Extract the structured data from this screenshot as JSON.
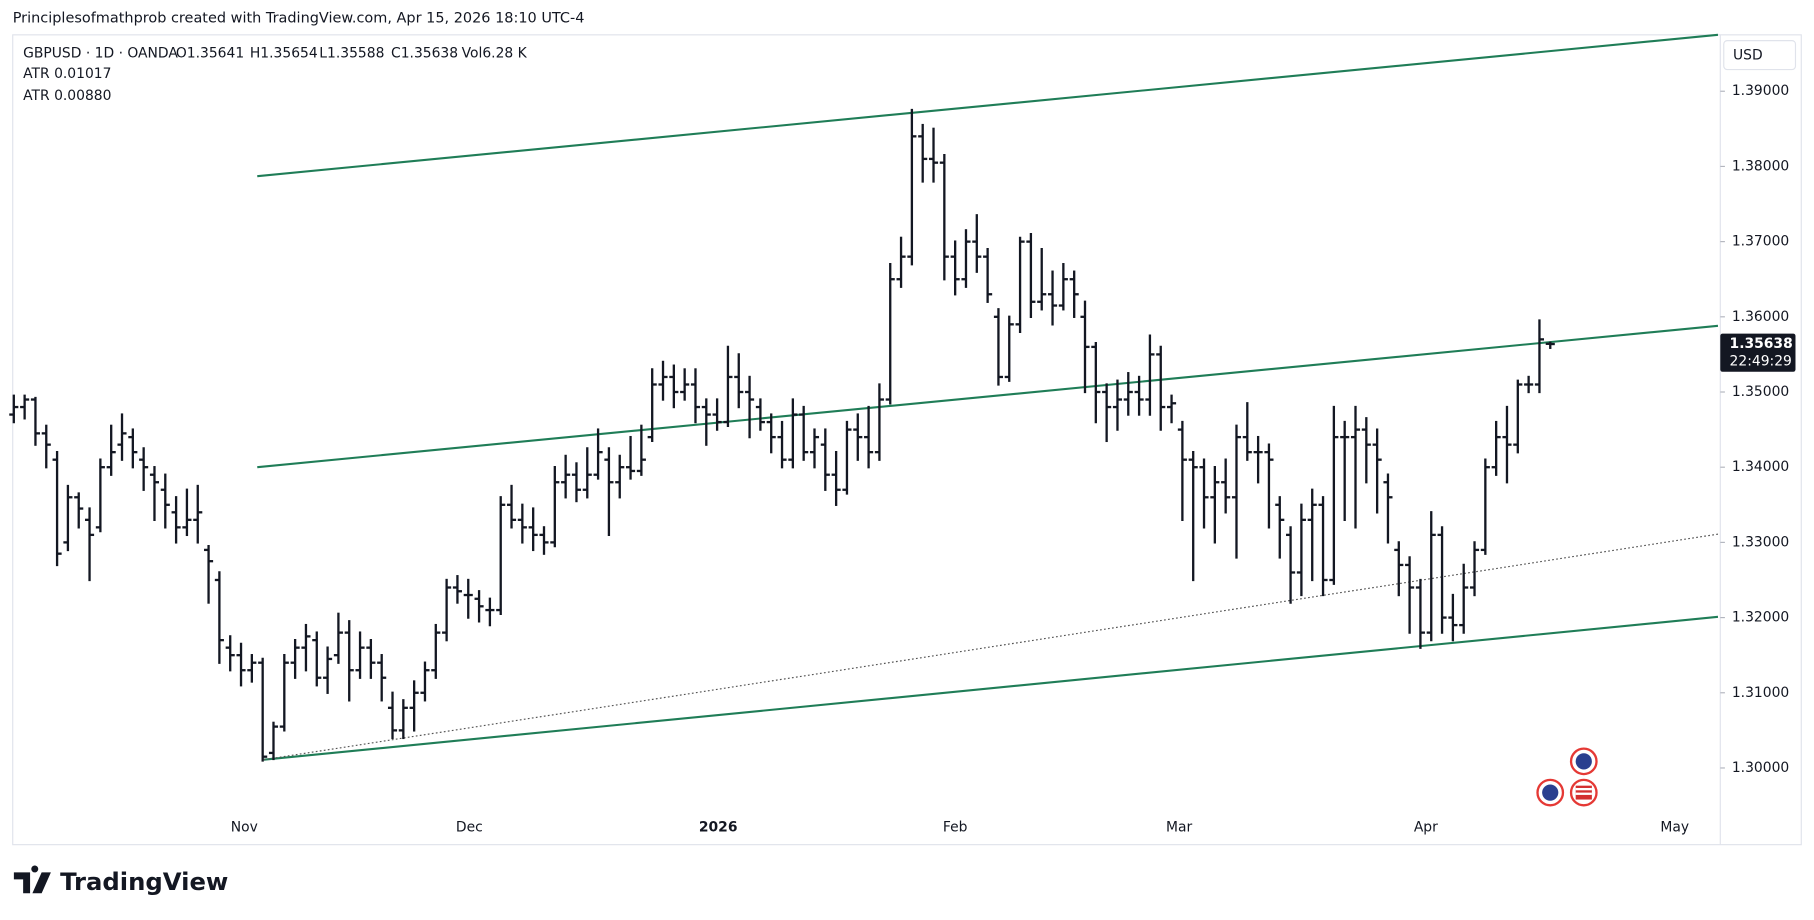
{
  "chart_data": {
    "type": "ohlc",
    "attribution": "Principlesofmathprob created with TradingView.com, Apr 15, 2026 18:10 UTC-4",
    "symbol": "GBPUSD · 1D · OANDA",
    "ohlc_legend": [
      "O1.35641",
      "H1.35654",
      "L1.35588",
      "C1.35638",
      "Vol6.28 K"
    ],
    "indicators": [
      "ATR 0.01017",
      "ATR 0.00880"
    ],
    "currency": "USD",
    "price_tag": "1.35638",
    "countdown": "22:49:29",
    "brand": "TradingView",
    "color": "#131722",
    "xlim": [
      -0.1,
      157.5
    ],
    "ylim": [
      1.2898,
      1.3975
    ],
    "xticks": [
      {
        "value": 21.3,
        "label": "Nov"
      },
      {
        "value": 42.1,
        "label": "Dec"
      },
      {
        "value": 65.1,
        "label": "2026"
      },
      {
        "value": 87,
        "label": "Feb"
      },
      {
        "value": 107.7,
        "label": "Mar"
      },
      {
        "value": 130.5,
        "label": "Apr"
      },
      {
        "value": 153.5,
        "label": "May"
      }
    ],
    "yticks": [
      {
        "value": 1.3,
        "label": "1.30000"
      },
      {
        "value": 1.31,
        "label": "1.31000"
      },
      {
        "value": 1.32,
        "label": "1.32000"
      },
      {
        "value": 1.33,
        "label": "1.33000"
      },
      {
        "value": 1.34,
        "label": "1.34000"
      },
      {
        "value": 1.35,
        "label": "1.35000"
      },
      {
        "value": 1.36,
        "label": "1.36000"
      },
      {
        "value": 1.37,
        "label": "1.37000"
      },
      {
        "value": 1.38,
        "label": "1.38000"
      },
      {
        "value": 1.39,
        "label": "1.39000"
      }
    ],
    "grid": false,
    "trendlines": [
      {
        "x": [
          22.5,
          157.5
        ],
        "y": [
          1.3787,
          1.3975
        ],
        "color": "#1f7d57",
        "style": "solid"
      },
      {
        "x": [
          22.5,
          157.5
        ],
        "y": [
          1.34,
          1.3588
        ],
        "color": "#1f7d57",
        "style": "solid"
      },
      {
        "x": [
          23.1,
          157.5
        ],
        "y": [
          1.3011,
          1.3201
        ],
        "color": "#1f7d57",
        "style": "solid"
      },
      {
        "x": [
          23.1,
          157.5
        ],
        "y": [
          1.3011,
          1.3311
        ],
        "color": "#555555",
        "style": "dotted"
      }
    ],
    "ohlc": [
      [
        1.347,
        1.3495,
        1.346,
        1.348
      ],
      [
        1.348,
        1.3495,
        1.3465,
        1.349
      ],
      [
        1.349,
        1.3492,
        1.343,
        1.3445
      ],
      [
        1.3445,
        1.3455,
        1.34,
        1.343
      ],
      [
        1.341,
        1.342,
        1.327,
        1.3285
      ],
      [
        1.33,
        1.3375,
        1.329,
        1.336
      ],
      [
        1.336,
        1.3365,
        1.332,
        1.3345
      ],
      [
        1.333,
        1.3345,
        1.325,
        1.331
      ],
      [
        1.332,
        1.341,
        1.3315,
        1.34
      ],
      [
        1.34,
        1.3455,
        1.339,
        1.342
      ],
      [
        1.343,
        1.347,
        1.341,
        1.3445
      ],
      [
        1.344,
        1.345,
        1.34,
        1.342
      ],
      [
        1.341,
        1.3425,
        1.337,
        1.34
      ],
      [
        1.339,
        1.34,
        1.333,
        1.338
      ],
      [
        1.337,
        1.339,
        1.332,
        1.335
      ],
      [
        1.334,
        1.336,
        1.33,
        1.332
      ],
      [
        1.332,
        1.337,
        1.331,
        1.333
      ],
      [
        1.333,
        1.3375,
        1.33,
        1.334
      ],
      [
        1.329,
        1.3295,
        1.322,
        1.3275
      ],
      [
        1.325,
        1.326,
        1.314,
        1.317
      ],
      [
        1.316,
        1.3175,
        1.313,
        1.315
      ],
      [
        1.315,
        1.3165,
        1.311,
        1.313
      ],
      [
        1.313,
        1.315,
        1.3115,
        1.314
      ],
      [
        1.314,
        1.3145,
        1.301,
        1.3015
      ],
      [
        1.302,
        1.306,
        1.3012,
        1.3055
      ],
      [
        1.3055,
        1.315,
        1.305,
        1.314
      ],
      [
        1.314,
        1.317,
        1.312,
        1.316
      ],
      [
        1.316,
        1.319,
        1.313,
        1.3175
      ],
      [
        1.317,
        1.318,
        1.311,
        1.312
      ],
      [
        1.312,
        1.316,
        1.31,
        1.3145
      ],
      [
        1.315,
        1.3205,
        1.314,
        1.318
      ],
      [
        1.318,
        1.3195,
        1.309,
        1.313
      ],
      [
        1.313,
        1.318,
        1.312,
        1.316
      ],
      [
        1.316,
        1.317,
        1.312,
        1.314
      ],
      [
        1.314,
        1.315,
        1.309,
        1.312
      ],
      [
        1.308,
        1.31,
        1.304,
        1.305
      ],
      [
        1.305,
        1.309,
        1.304,
        1.308
      ],
      [
        1.308,
        1.3115,
        1.305,
        1.31
      ],
      [
        1.31,
        1.314,
        1.309,
        1.313
      ],
      [
        1.313,
        1.319,
        1.312,
        1.318
      ],
      [
        1.318,
        1.325,
        1.317,
        1.324
      ],
      [
        1.324,
        1.3255,
        1.322,
        1.3235
      ],
      [
        1.323,
        1.325,
        1.32,
        1.323
      ],
      [
        1.3225,
        1.3235,
        1.3195,
        1.3215
      ],
      [
        1.321,
        1.3225,
        1.319,
        1.321
      ],
      [
        1.321,
        1.336,
        1.3205,
        1.335
      ],
      [
        1.335,
        1.3375,
        1.332,
        1.333
      ],
      [
        1.333,
        1.335,
        1.33,
        1.332
      ],
      [
        1.332,
        1.3345,
        1.329,
        1.331
      ],
      [
        1.331,
        1.332,
        1.3285,
        1.33
      ],
      [
        1.33,
        1.34,
        1.3295,
        1.338
      ],
      [
        1.338,
        1.3415,
        1.336,
        1.339
      ],
      [
        1.339,
        1.3405,
        1.3355,
        1.337
      ],
      [
        1.337,
        1.3425,
        1.336,
        1.339
      ],
      [
        1.339,
        1.345,
        1.3385,
        1.342
      ],
      [
        1.341,
        1.3425,
        1.331,
        1.338
      ],
      [
        1.338,
        1.3415,
        1.336,
        1.34
      ],
      [
        1.34,
        1.344,
        1.3385,
        1.3395
      ],
      [
        1.3395,
        1.3455,
        1.339,
        1.341
      ],
      [
        1.344,
        1.353,
        1.3435,
        1.351
      ],
      [
        1.351,
        1.354,
        1.349,
        1.352
      ],
      [
        1.352,
        1.3535,
        1.348,
        1.35
      ],
      [
        1.35,
        1.353,
        1.349,
        1.351
      ],
      [
        1.351,
        1.353,
        1.346,
        1.348
      ],
      [
        1.348,
        1.349,
        1.343,
        1.347
      ],
      [
        1.347,
        1.349,
        1.345,
        1.346
      ],
      [
        1.346,
        1.356,
        1.3455,
        1.352
      ],
      [
        1.352,
        1.355,
        1.348,
        1.35
      ],
      [
        1.35,
        1.352,
        1.344,
        1.349
      ],
      [
        1.348,
        1.349,
        1.345,
        1.346
      ],
      [
        1.346,
        1.347,
        1.342,
        1.344
      ],
      [
        1.344,
        1.346,
        1.34,
        1.341
      ],
      [
        1.341,
        1.349,
        1.34,
        1.347
      ],
      [
        1.347,
        1.348,
        1.341,
        1.342
      ],
      [
        1.342,
        1.345,
        1.34,
        1.344
      ],
      [
        1.343,
        1.345,
        1.337,
        1.339
      ],
      [
        1.339,
        1.342,
        1.335,
        1.337
      ],
      [
        1.337,
        1.346,
        1.3365,
        1.345
      ],
      [
        1.345,
        1.347,
        1.341,
        1.344
      ],
      [
        1.344,
        1.348,
        1.34,
        1.342
      ],
      [
        1.342,
        1.351,
        1.341,
        1.349
      ],
      [
        1.349,
        1.367,
        1.3485,
        1.365
      ],
      [
        1.365,
        1.3705,
        1.364,
        1.368
      ],
      [
        1.368,
        1.3875,
        1.367,
        1.384
      ],
      [
        1.384,
        1.3855,
        1.378,
        1.381
      ],
      [
        1.381,
        1.385,
        1.378,
        1.3805
      ],
      [
        1.3805,
        1.3815,
        1.365,
        1.368
      ],
      [
        1.368,
        1.37,
        1.363,
        1.365
      ],
      [
        1.365,
        1.3715,
        1.364,
        1.37
      ],
      [
        1.37,
        1.3735,
        1.366,
        1.368
      ],
      [
        1.368,
        1.369,
        1.362,
        1.363
      ],
      [
        1.36,
        1.361,
        1.351,
        1.352
      ],
      [
        1.352,
        1.36,
        1.3515,
        1.359
      ],
      [
        1.359,
        1.3705,
        1.358,
        1.37
      ],
      [
        1.37,
        1.371,
        1.36,
        1.362
      ],
      [
        1.362,
        1.369,
        1.361,
        1.363
      ],
      [
        1.363,
        1.366,
        1.359,
        1.3615
      ],
      [
        1.3615,
        1.367,
        1.361,
        1.365
      ],
      [
        1.365,
        1.366,
        1.36,
        1.363
      ],
      [
        1.36,
        1.362,
        1.35,
        1.356
      ],
      [
        1.356,
        1.3565,
        1.346,
        1.35
      ],
      [
        1.35,
        1.351,
        1.3435,
        1.348
      ],
      [
        1.348,
        1.3515,
        1.345,
        1.349
      ],
      [
        1.349,
        1.3525,
        1.347,
        1.35
      ],
      [
        1.35,
        1.352,
        1.347,
        1.349
      ],
      [
        1.349,
        1.3575,
        1.347,
        1.355
      ],
      [
        1.355,
        1.356,
        1.345,
        1.348
      ],
      [
        1.348,
        1.3495,
        1.346,
        1.3485
      ],
      [
        1.345,
        1.346,
        1.333,
        1.341
      ],
      [
        1.341,
        1.342,
        1.325,
        1.34
      ],
      [
        1.34,
        1.341,
        1.332,
        1.336
      ],
      [
        1.336,
        1.34,
        1.33,
        1.338
      ],
      [
        1.338,
        1.341,
        1.334,
        1.336
      ],
      [
        1.336,
        1.3455,
        1.328,
        1.344
      ],
      [
        1.344,
        1.3485,
        1.341,
        1.342
      ],
      [
        1.342,
        1.344,
        1.338,
        1.342
      ],
      [
        1.342,
        1.343,
        1.332,
        1.341
      ],
      [
        1.335,
        1.336,
        1.328,
        1.333
      ],
      [
        1.331,
        1.332,
        1.322,
        1.326
      ],
      [
        1.326,
        1.335,
        1.323,
        1.333
      ],
      [
        1.333,
        1.337,
        1.325,
        1.335
      ],
      [
        1.335,
        1.336,
        1.323,
        1.325
      ],
      [
        1.325,
        1.348,
        1.3245,
        1.344
      ],
      [
        1.344,
        1.346,
        1.333,
        1.344
      ],
      [
        1.344,
        1.348,
        1.332,
        1.345
      ],
      [
        1.345,
        1.3465,
        1.338,
        1.343
      ],
      [
        1.343,
        1.345,
        1.334,
        1.341
      ],
      [
        1.338,
        1.339,
        1.33,
        1.336
      ],
      [
        1.329,
        1.33,
        1.323,
        1.327
      ],
      [
        1.327,
        1.328,
        1.318,
        1.324
      ],
      [
        1.324,
        1.325,
        1.316,
        1.318
      ],
      [
        1.318,
        1.334,
        1.317,
        1.331
      ],
      [
        1.331,
        1.332,
        1.318,
        1.32
      ],
      [
        1.32,
        1.323,
        1.317,
        1.319
      ],
      [
        1.319,
        1.327,
        1.318,
        1.324
      ],
      [
        1.324,
        1.33,
        1.323,
        1.329
      ],
      [
        1.329,
        1.341,
        1.3285,
        1.34
      ],
      [
        1.34,
        1.346,
        1.339,
        1.344
      ],
      [
        1.344,
        1.348,
        1.338,
        1.343
      ],
      [
        1.343,
        1.3515,
        1.342,
        1.351
      ],
      [
        1.351,
        1.352,
        1.35,
        1.351
      ],
      [
        1.351,
        1.3595,
        1.35,
        1.357
      ],
      [
        1.35641,
        1.35654,
        1.35588,
        1.35638
      ]
    ]
  }
}
